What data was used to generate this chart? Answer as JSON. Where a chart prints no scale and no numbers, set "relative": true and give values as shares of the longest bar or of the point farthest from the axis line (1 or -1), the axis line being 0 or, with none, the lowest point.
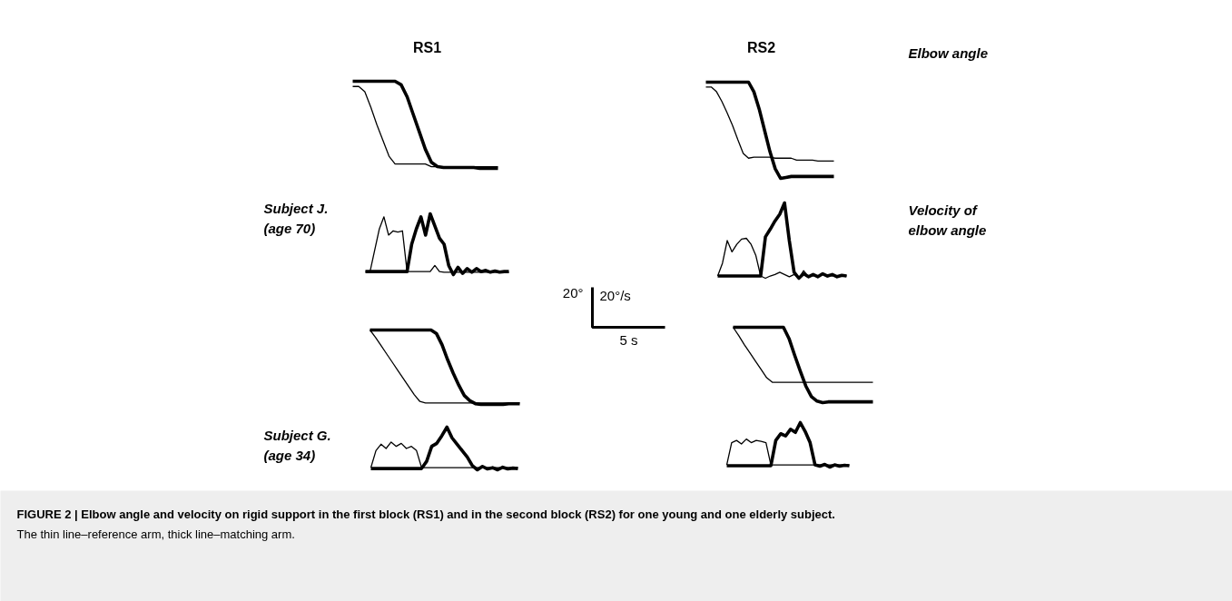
{
  "chart_data": [
    {
      "type": "line",
      "title": "RS1",
      "relative": true,
      "categories": [
        null,
        null,
        null,
        null,
        null,
        null,
        null,
        null,
        null,
        null,
        null,
        null,
        null,
        null,
        null,
        null,
        null,
        null,
        null,
        null,
        null,
        null,
        null,
        null,
        null
      ],
      "series": [
        {
          "color": "#000000",
          "values": [
            0.94,
            0.94,
            0.88,
            0.7,
            0.5,
            0.32,
            0.14,
            0.05,
            0.05,
            0.05,
            0.05,
            0.05,
            0.05,
            0.02,
            0.02,
            0.02,
            0.02,
            0.02,
            0.02,
            0.02,
            0.02,
            0.02,
            0.02,
            0.02,
            0.02
          ]
        },
        {
          "color": "#000000",
          "values": [
            1.0,
            1.0,
            1.0,
            1.0,
            1.0,
            1.0,
            1.0,
            1.0,
            0.96,
            0.82,
            0.62,
            0.42,
            0.22,
            0.07,
            0.02,
            0.01,
            0.01,
            0.01,
            0.01,
            0.01,
            0.01,
            0.0,
            0.0,
            0.0,
            0.0
          ]
        }
      ]
    },
    {
      "type": "line",
      "title": "RS2",
      "relative": true,
      "categories": [
        null,
        null,
        null,
        null,
        null,
        null,
        null,
        null,
        null,
        null,
        null,
        null,
        null,
        null,
        null,
        null,
        null,
        null,
        null,
        null,
        null,
        null,
        null,
        null,
        null
      ],
      "series": [
        {
          "color": "#000000",
          "values": [
            0.95,
            0.95,
            0.9,
            0.8,
            0.68,
            0.55,
            0.4,
            0.26,
            0.21,
            0.22,
            0.22,
            0.22,
            0.22,
            0.21,
            0.21,
            0.21,
            0.21,
            0.19,
            0.19,
            0.19,
            0.19,
            0.18,
            0.18,
            0.18,
            0.18
          ]
        },
        {
          "color": "#000000",
          "values": [
            1.0,
            1.0,
            1.0,
            1.0,
            1.0,
            1.0,
            1.0,
            1.0,
            1.0,
            0.9,
            0.72,
            0.5,
            0.28,
            0.1,
            0.0,
            0.01,
            0.02,
            0.02,
            0.02,
            0.02,
            0.02,
            0.02,
            0.02,
            0.02,
            0.02
          ]
        }
      ],
      "annotations": [
        "Elbow angle"
      ]
    },
    {
      "type": "line",
      "relative": true,
      "categories": [
        null,
        null,
        null,
        null,
        null,
        null,
        null,
        null,
        null,
        null,
        null,
        null,
        null,
        null,
        null,
        null,
        null,
        null,
        null,
        null,
        null,
        null,
        null,
        null,
        null,
        null,
        null,
        null,
        null,
        null,
        null,
        null
      ],
      "series": [
        {
          "color": "#000000",
          "values": [
            0.05,
            0.05,
            0.4,
            0.75,
            0.95,
            0.65,
            0.72,
            0.7,
            0.72,
            0.05,
            0.05,
            0.05,
            0.05,
            0.05,
            0.05,
            0.15,
            0.05,
            0.04,
            0.04,
            0.04,
            0.04,
            0.04,
            0.04,
            0.04,
            0.04,
            0.04,
            0.04,
            0.04,
            0.04,
            0.04,
            0.04,
            0.04
          ]
        },
        {
          "color": "#000000",
          "values": [
            0.05,
            0.05,
            0.05,
            0.05,
            0.05,
            0.05,
            0.05,
            0.05,
            0.05,
            0.05,
            0.5,
            0.75,
            0.95,
            0.65,
            1.0,
            0.8,
            0.6,
            0.5,
            0.15,
            0.0,
            0.12,
            0.02,
            0.1,
            0.04,
            0.1,
            0.05,
            0.07,
            0.04,
            0.06,
            0.04,
            0.05,
            0.05
          ]
        }
      ],
      "annotations": [
        "Subject J. (age 70)"
      ]
    },
    {
      "type": "line",
      "relative": true,
      "categories": [
        null,
        null,
        null,
        null,
        null,
        null,
        null,
        null,
        null,
        null,
        null,
        null,
        null,
        null,
        null,
        null,
        null,
        null,
        null,
        null,
        null,
        null,
        null,
        null,
        null,
        null,
        null,
        null
      ],
      "series": [
        {
          "color": "#000000",
          "values": [
            0.03,
            0.2,
            0.5,
            0.35,
            0.45,
            0.52,
            0.53,
            0.45,
            0.3,
            0.03,
            0.0,
            0.03,
            0.05,
            0.08,
            0.05,
            0.02,
            0.05,
            0.0,
            0.1,
            0.02,
            0.05,
            0.03,
            0.06,
            0.02,
            0.05,
            0.03,
            0.04,
            0.03
          ]
        },
        {
          "color": "#000000",
          "values": [
            0.03,
            0.03,
            0.03,
            0.03,
            0.03,
            0.03,
            0.03,
            0.03,
            0.03,
            0.03,
            0.55,
            0.65,
            0.76,
            0.85,
            1.0,
            0.5,
            0.08,
            0.0,
            0.06,
            0.02,
            0.05,
            0.02,
            0.06,
            0.03,
            0.05,
            0.02,
            0.04,
            0.03
          ]
        }
      ],
      "annotations": [
        "Velocity of elbow angle"
      ]
    },
    {
      "type": "line",
      "relative": true,
      "categories": [
        null,
        null,
        null,
        null,
        null,
        null,
        null,
        null,
        null,
        null,
        null,
        null,
        null,
        null,
        null,
        null,
        null,
        null,
        null,
        null,
        null,
        null,
        null,
        null,
        null,
        null,
        null,
        null
      ],
      "series": [
        {
          "color": "#000000",
          "values": [
            1.0,
            0.9,
            0.79,
            0.68,
            0.57,
            0.46,
            0.35,
            0.24,
            0.13,
            0.04,
            0.02,
            0.02,
            0.02,
            0.02,
            0.02,
            0.02,
            0.02,
            0.02,
            0.02,
            0.02,
            0.02,
            0.02,
            0.02,
            0.02,
            0.02,
            0.02,
            0.02,
            0.02
          ]
        },
        {
          "color": "#000000",
          "values": [
            1.0,
            1.0,
            1.0,
            1.0,
            1.0,
            1.0,
            1.0,
            1.0,
            1.0,
            1.0,
            1.0,
            1.0,
            0.95,
            0.8,
            0.6,
            0.42,
            0.26,
            0.12,
            0.05,
            0.01,
            0.0,
            0.0,
            0.0,
            0.0,
            0.0,
            0.01,
            0.01,
            0.01
          ]
        }
      ],
      "annotations": [
        "20°",
        "20°/s",
        "5 s"
      ]
    },
    {
      "type": "line",
      "relative": true,
      "categories": [
        null,
        null,
        null,
        null,
        null,
        null,
        null,
        null,
        null,
        null,
        null,
        null,
        null,
        null,
        null,
        null,
        null,
        null,
        null,
        null,
        null,
        null,
        null,
        null,
        null,
        null
      ],
      "series": [
        {
          "color": "#000000",
          "values": [
            1.0,
            0.89,
            0.77,
            0.66,
            0.55,
            0.44,
            0.33,
            0.27,
            0.27,
            0.27,
            0.27,
            0.27,
            0.27,
            0.27,
            0.27,
            0.27,
            0.27,
            0.27,
            0.27,
            0.27,
            0.27,
            0.27,
            0.27,
            0.27,
            0.27,
            0.27
          ]
        },
        {
          "color": "#000000",
          "values": [
            1.0,
            1.0,
            1.0,
            1.0,
            1.0,
            1.0,
            1.0,
            1.0,
            1.0,
            1.0,
            0.85,
            0.63,
            0.42,
            0.22,
            0.08,
            0.02,
            0.0,
            0.01,
            0.01,
            0.01,
            0.01,
            0.01,
            0.01,
            0.01,
            0.01,
            0.01
          ]
        }
      ]
    },
    {
      "type": "line",
      "relative": true,
      "categories": [
        null,
        null,
        null,
        null,
        null,
        null,
        null,
        null,
        null,
        null,
        null,
        null,
        null,
        null,
        null,
        null,
        null,
        null,
        null,
        null,
        null,
        null,
        null,
        null,
        null,
        null,
        null,
        null,
        null,
        null
      ],
      "series": [
        {
          "color": "#000000",
          "values": [
            0.05,
            0.45,
            0.6,
            0.5,
            0.65,
            0.55,
            0.62,
            0.5,
            0.55,
            0.45,
            0.05,
            0.05,
            0.05,
            0.05,
            0.05,
            0.05,
            0.05,
            0.05,
            0.05,
            0.05,
            0.05,
            0.05,
            0.05,
            0.05,
            0.05,
            0.05,
            0.05,
            0.05,
            0.05,
            0.05
          ]
        },
        {
          "color": "#000000",
          "values": [
            0.03,
            0.03,
            0.03,
            0.03,
            0.03,
            0.03,
            0.03,
            0.03,
            0.03,
            0.03,
            0.03,
            0.2,
            0.55,
            0.62,
            0.8,
            1.0,
            0.75,
            0.6,
            0.45,
            0.3,
            0.1,
            0.0,
            0.08,
            0.02,
            0.05,
            0.0,
            0.06,
            0.02,
            0.04,
            0.03
          ]
        }
      ],
      "annotations": [
        "Subject G. (age 34)"
      ]
    },
    {
      "type": "line",
      "relative": true,
      "categories": [
        null,
        null,
        null,
        null,
        null,
        null,
        null,
        null,
        null,
        null,
        null,
        null,
        null,
        null,
        null,
        null,
        null,
        null,
        null,
        null,
        null,
        null,
        null,
        null,
        null,
        null
      ],
      "series": [
        {
          "color": "#000000",
          "values": [
            0.05,
            0.55,
            0.6,
            0.52,
            0.63,
            0.55,
            0.6,
            0.58,
            0.55,
            0.05,
            0.05,
            0.05,
            0.05,
            0.05,
            0.05,
            0.05,
            0.05,
            0.05,
            0.05,
            0.05,
            0.05,
            0.05,
            0.05,
            0.05,
            0.05,
            0.05
          ]
        },
        {
          "color": "#000000",
          "values": [
            0.03,
            0.03,
            0.03,
            0.03,
            0.03,
            0.03,
            0.03,
            0.03,
            0.03,
            0.03,
            0.6,
            0.75,
            0.7,
            0.85,
            0.78,
            1.0,
            0.8,
            0.55,
            0.05,
            0.02,
            0.06,
            0.0,
            0.05,
            0.02,
            0.04,
            0.03
          ]
        }
      ]
    },
    {
      "type": "other",
      "annotations": [
        "FIGURE 2 | Elbow angle and velocity on rigid support in the first block (RS1) and in the second block (RS2) for one young and one elderly subject.",
        "The thin line–reference arm, thick line–matching arm."
      ]
    }
  ]
}
